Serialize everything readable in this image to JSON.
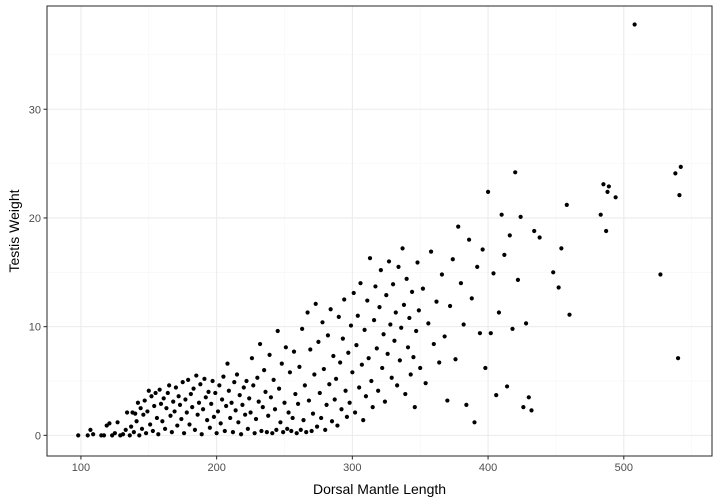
{
  "chart_data": {
    "type": "scatter",
    "title": "",
    "xlabel": "Dorsal Mantle Length",
    "ylabel": "Testis Weight",
    "xlim": [
      75,
      565
    ],
    "ylim": [
      -1.9,
      39.5
    ],
    "x_ticks": [
      100,
      200,
      300,
      400,
      500
    ],
    "y_ticks": [
      0,
      10,
      20,
      30
    ],
    "grid": true,
    "legend": "none",
    "theme": "bw",
    "point_color": "#000000",
    "points": [
      [
        98,
        0.0
      ],
      [
        105,
        0.0
      ],
      [
        107,
        0.5
      ],
      [
        109,
        0.1
      ],
      [
        115,
        0.0
      ],
      [
        117,
        0.0
      ],
      [
        119,
        0.9
      ],
      [
        121,
        1.1
      ],
      [
        123,
        0.0
      ],
      [
        125,
        0.2
      ],
      [
        127,
        1.2
      ],
      [
        129,
        0.0
      ],
      [
        131,
        0.1
      ],
      [
        133,
        0.5
      ],
      [
        134,
        2.1
      ],
      [
        136,
        0.0
      ],
      [
        137,
        0.8
      ],
      [
        138,
        2.1
      ],
      [
        139,
        0.3
      ],
      [
        140,
        2.0
      ],
      [
        141,
        1.3
      ],
      [
        142,
        3.0
      ],
      [
        143,
        0.0
      ],
      [
        144,
        2.5
      ],
      [
        145,
        0.6
      ],
      [
        146,
        1.9
      ],
      [
        147,
        3.2
      ],
      [
        148,
        0.2
      ],
      [
        149,
        2.2
      ],
      [
        150,
        4.1
      ],
      [
        151,
        1.0
      ],
      [
        152,
        3.6
      ],
      [
        153,
        0.4
      ],
      [
        154,
        2.7
      ],
      [
        155,
        3.9
      ],
      [
        156,
        1.6
      ],
      [
        157,
        0.1
      ],
      [
        158,
        4.2
      ],
      [
        159,
        2.9
      ],
      [
        160,
        1.3
      ],
      [
        161,
        3.4
      ],
      [
        162,
        0.6
      ],
      [
        163,
        2.5
      ],
      [
        164,
        3.9
      ],
      [
        165,
        4.6
      ],
      [
        166,
        1.8
      ],
      [
        167,
        0.3
      ],
      [
        168,
        3.1
      ],
      [
        169,
        2.2
      ],
      [
        170,
        4.4
      ],
      [
        171,
        0.9
      ],
      [
        172,
        3.6
      ],
      [
        173,
        2.8
      ],
      [
        174,
        1.5
      ],
      [
        175,
        4.9
      ],
      [
        176,
        0.2
      ],
      [
        177,
        3.3
      ],
      [
        178,
        2.1
      ],
      [
        179,
        5.1
      ],
      [
        180,
        1.0
      ],
      [
        181,
        3.8
      ],
      [
        182,
        2.6
      ],
      [
        183,
        4.3
      ],
      [
        184,
        0.5
      ],
      [
        185,
        5.5
      ],
      [
        186,
        1.9
      ],
      [
        187,
        3.0
      ],
      [
        188,
        4.7
      ],
      [
        189,
        0.1
      ],
      [
        190,
        2.4
      ],
      [
        191,
        5.2
      ],
      [
        192,
        3.5
      ],
      [
        193,
        1.4
      ],
      [
        194,
        4.0
      ],
      [
        195,
        0.7
      ],
      [
        196,
        2.9
      ],
      [
        197,
        5.0
      ],
      [
        198,
        1.7
      ],
      [
        199,
        3.9
      ],
      [
        200,
        0.2
      ],
      [
        201,
        2.2
      ],
      [
        202,
        4.6
      ],
      [
        203,
        1.1
      ],
      [
        204,
        3.3
      ],
      [
        205,
        5.4
      ],
      [
        206,
        0.4
      ],
      [
        207,
        2.7
      ],
      [
        208,
        6.6
      ],
      [
        209,
        4.1
      ],
      [
        210,
        1.6
      ],
      [
        211,
        3.0
      ],
      [
        212,
        0.3
      ],
      [
        213,
        4.9
      ],
      [
        214,
        2.3
      ],
      [
        215,
        5.6
      ],
      [
        216,
        1.2
      ],
      [
        217,
        3.7
      ],
      [
        218,
        0.1
      ],
      [
        219,
        2.8
      ],
      [
        220,
        4.4
      ],
      [
        221,
        1.9
      ],
      [
        222,
        5.0
      ],
      [
        223,
        0.6
      ],
      [
        224,
        3.4
      ],
      [
        225,
        2.1
      ],
      [
        226,
        7.1
      ],
      [
        227,
        4.6
      ],
      [
        228,
        0.2
      ],
      [
        229,
        1.5
      ],
      [
        230,
        5.3
      ],
      [
        231,
        3.1
      ],
      [
        232,
        8.4
      ],
      [
        233,
        0.4
      ],
      [
        234,
        2.6
      ],
      [
        235,
        6.0
      ],
      [
        236,
        4.0
      ],
      [
        237,
        0.3
      ],
      [
        238,
        1.8
      ],
      [
        239,
        7.4
      ],
      [
        240,
        3.5
      ],
      [
        241,
        0.2
      ],
      [
        242,
        5.1
      ],
      [
        243,
        2.4
      ],
      [
        244,
        0.5
      ],
      [
        245,
        9.6
      ],
      [
        246,
        4.3
      ],
      [
        247,
        1.2
      ],
      [
        248,
        6.6
      ],
      [
        249,
        0.3
      ],
      [
        250,
        3.0
      ],
      [
        251,
        8.1
      ],
      [
        252,
        0.6
      ],
      [
        253,
        2.1
      ],
      [
        254,
        5.8
      ],
      [
        255,
        0.4
      ],
      [
        256,
        1.6
      ],
      [
        257,
        7.7
      ],
      [
        258,
        3.8
      ],
      [
        259,
        0.2
      ],
      [
        260,
        2.9
      ],
      [
        261,
        6.3
      ],
      [
        262,
        0.5
      ],
      [
        263,
        9.8
      ],
      [
        264,
        1.4
      ],
      [
        265,
        4.6
      ],
      [
        266,
        0.3
      ],
      [
        267,
        11.3
      ],
      [
        268,
        3.2
      ],
      [
        269,
        7.9
      ],
      [
        270,
        0.4
      ],
      [
        271,
        2.0
      ],
      [
        272,
        5.6
      ],
      [
        273,
        12.1
      ],
      [
        274,
        0.8
      ],
      [
        275,
        8.6
      ],
      [
        276,
        3.9
      ],
      [
        277,
        1.6
      ],
      [
        278,
        10.4
      ],
      [
        279,
        6.1
      ],
      [
        280,
        0.5
      ],
      [
        281,
        2.8
      ],
      [
        282,
        9.2
      ],
      [
        283,
        4.7
      ],
      [
        284,
        11.6
      ],
      [
        285,
        1.3
      ],
      [
        286,
        7.3
      ],
      [
        287,
        3.3
      ],
      [
        288,
        5.2
      ],
      [
        289,
        0.9
      ],
      [
        290,
        10.9
      ],
      [
        291,
        6.7
      ],
      [
        292,
        2.4
      ],
      [
        293,
        8.9
      ],
      [
        294,
        12.5
      ],
      [
        295,
        4.1
      ],
      [
        296,
        1.7
      ],
      [
        297,
        7.6
      ],
      [
        298,
        3.0
      ],
      [
        299,
        10.1
      ],
      [
        300,
        5.8
      ],
      [
        301,
        13.1
      ],
      [
        302,
        2.1
      ],
      [
        303,
        8.3
      ],
      [
        304,
        11.0
      ],
      [
        305,
        4.4
      ],
      [
        306,
        14.0
      ],
      [
        307,
        6.5
      ],
      [
        308,
        1.4
      ],
      [
        309,
        9.7
      ],
      [
        310,
        3.6
      ],
      [
        311,
        12.4
      ],
      [
        312,
        7.1
      ],
      [
        313,
        16.3
      ],
      [
        314,
        5.0
      ],
      [
        315,
        2.6
      ],
      [
        316,
        10.6
      ],
      [
        317,
        13.7
      ],
      [
        318,
        8.0
      ],
      [
        319,
        4.1
      ],
      [
        320,
        11.8
      ],
      [
        321,
        15.2
      ],
      [
        322,
        6.2
      ],
      [
        323,
        9.3
      ],
      [
        324,
        3.1
      ],
      [
        325,
        12.9
      ],
      [
        326,
        7.5
      ],
      [
        327,
        16.0
      ],
      [
        328,
        10.2
      ],
      [
        329,
        5.3
      ],
      [
        330,
        13.9
      ],
      [
        331,
        8.7
      ],
      [
        332,
        11.3
      ],
      [
        333,
        4.6
      ],
      [
        334,
        15.5
      ],
      [
        335,
        6.9
      ],
      [
        336,
        9.9
      ],
      [
        337,
        17.2
      ],
      [
        338,
        12.0
      ],
      [
        339,
        3.8
      ],
      [
        340,
        14.4
      ],
      [
        341,
        8.1
      ],
      [
        342,
        10.8
      ],
      [
        343,
        5.6
      ],
      [
        344,
        13.2
      ],
      [
        345,
        7.2
      ],
      [
        346,
        2.6
      ],
      [
        347,
        9.6
      ],
      [
        348,
        15.9
      ],
      [
        349,
        11.5
      ],
      [
        350,
        6.2
      ],
      [
        352,
        13.5
      ],
      [
        354,
        4.8
      ],
      [
        356,
        10.3
      ],
      [
        358,
        16.9
      ],
      [
        360,
        8.4
      ],
      [
        362,
        12.3
      ],
      [
        364,
        6.7
      ],
      [
        366,
        14.8
      ],
      [
        368,
        9.1
      ],
      [
        370,
        3.2
      ],
      [
        372,
        11.9
      ],
      [
        374,
        16.2
      ],
      [
        376,
        7.0
      ],
      [
        378,
        19.2
      ],
      [
        380,
        14.0
      ],
      [
        382,
        10.2
      ],
      [
        384,
        2.8
      ],
      [
        386,
        18.0
      ],
      [
        388,
        12.6
      ],
      [
        390,
        1.2
      ],
      [
        392,
        15.5
      ],
      [
        394,
        9.4
      ],
      [
        396,
        17.1
      ],
      [
        398,
        6.2
      ],
      [
        400,
        22.4
      ],
      [
        402,
        9.4
      ],
      [
        404,
        14.9
      ],
      [
        406,
        3.7
      ],
      [
        408,
        11.3
      ],
      [
        410,
        20.3
      ],
      [
        412,
        16.6
      ],
      [
        414,
        4.5
      ],
      [
        416,
        18.4
      ],
      [
        418,
        9.8
      ],
      [
        420,
        24.2
      ],
      [
        422,
        14.3
      ],
      [
        424,
        20.1
      ],
      [
        426,
        2.6
      ],
      [
        428,
        10.3
      ],
      [
        430,
        3.5
      ],
      [
        432,
        2.3
      ],
      [
        434,
        18.8
      ],
      [
        438,
        18.2
      ],
      [
        448,
        15.0
      ],
      [
        452,
        13.6
      ],
      [
        454,
        17.2
      ],
      [
        458,
        21.2
      ],
      [
        460,
        11.1
      ],
      [
        483,
        20.3
      ],
      [
        485,
        23.1
      ],
      [
        487,
        18.8
      ],
      [
        488,
        22.4
      ],
      [
        489,
        22.9
      ],
      [
        494,
        21.9
      ],
      [
        508,
        37.8
      ],
      [
        527,
        14.8
      ],
      [
        538,
        24.1
      ],
      [
        540,
        7.1
      ],
      [
        541,
        22.1
      ],
      [
        542,
        24.7
      ]
    ]
  }
}
